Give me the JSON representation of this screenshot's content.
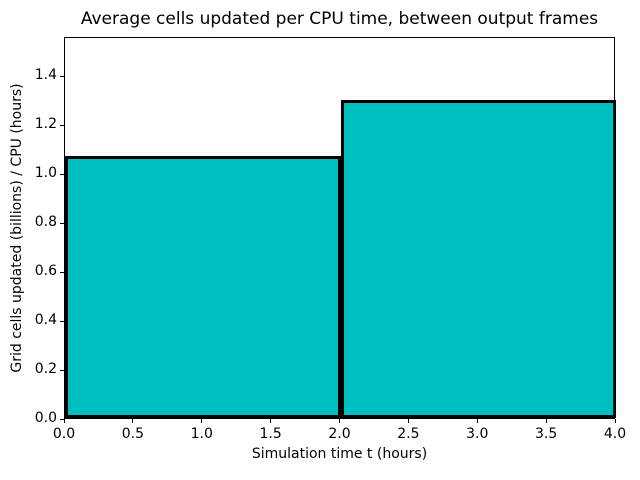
{
  "chart_data": {
    "type": "bar",
    "title": "Average cells updated per CPU time, between output frames",
    "xlabel": "Simulation time t (hours)",
    "ylabel": "Grid cells updated (billions) / CPU (hours)",
    "bars": [
      {
        "x_start": 0.0,
        "x_end": 2.0,
        "value": 1.07
      },
      {
        "x_start": 2.0,
        "x_end": 4.0,
        "value": 1.3
      }
    ],
    "xlim": [
      0.0,
      4.0
    ],
    "ylim": [
      0.0,
      1.56
    ],
    "x_ticks": [
      0.0,
      0.5,
      1.0,
      1.5,
      2.0,
      2.5,
      3.0,
      3.5,
      4.0
    ],
    "y_ticks": [
      0.0,
      0.2,
      0.4,
      0.6,
      0.8,
      1.0,
      1.2,
      1.4
    ],
    "tick_label_decimals": 1,
    "grid": false,
    "legend": null,
    "colors": {
      "bar_fill": "#00bfc0",
      "bar_edge": "#000000",
      "axes_frame": "#000000",
      "text": "#000000",
      "background": "#ffffff"
    }
  }
}
